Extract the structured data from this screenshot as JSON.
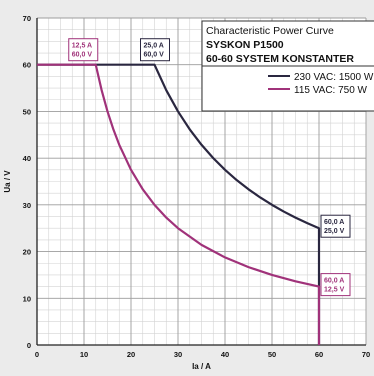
{
  "chart_data": {
    "type": "line",
    "title": "Characteristic Power Curve",
    "subtitle_lines": [
      "SYSKON P1500",
      "60-60 SYSTEM KONSTANTER"
    ],
    "xlabel": "Ia / A",
    "ylabel": "Ua / V",
    "xlim": [
      0,
      70
    ],
    "ylim": [
      0,
      70
    ],
    "x_ticks": [
      0,
      10,
      20,
      30,
      40,
      50,
      60,
      70
    ],
    "y_ticks": [
      0,
      10,
      20,
      30,
      40,
      50,
      60,
      70
    ],
    "grid": true,
    "legend_position": "top-right",
    "series": [
      {
        "name": "230 VAC: 1500 W",
        "color": "#2a2740",
        "x": [
          0,
          25,
          27.5,
          30,
          32.5,
          35,
          37.5,
          40,
          42.5,
          45,
          47.5,
          50,
          52.5,
          55,
          57.5,
          60,
          60
        ],
        "y": [
          60,
          60,
          54.55,
          50,
          46.15,
          42.86,
          40,
          37.5,
          35.29,
          33.33,
          31.58,
          30,
          28.57,
          27.27,
          26.09,
          25,
          0
        ]
      },
      {
        "name": "115 VAC:  750 W",
        "color": "#a0327a",
        "x": [
          0,
          12.5,
          13.75,
          15,
          16.25,
          17.5,
          20,
          22.5,
          25,
          27.5,
          30,
          35,
          40,
          45,
          50,
          55,
          60,
          60
        ],
        "y": [
          60,
          60,
          54.55,
          50,
          46.15,
          42.86,
          37.5,
          33.33,
          30,
          27.27,
          25,
          21.43,
          18.75,
          16.67,
          15,
          13.64,
          12.5,
          0
        ]
      }
    ],
    "annotations": [
      {
        "lines": [
          "12,5 A",
          "60,0 V"
        ],
        "color": "#a0327a"
      },
      {
        "lines": [
          "25,0 A",
          "60,0 V"
        ],
        "color": "#2a2740"
      },
      {
        "lines": [
          "60,0 A",
          "25,0 V"
        ],
        "color": "#2a2740"
      },
      {
        "lines": [
          "60,0 A",
          "12,5 V"
        ],
        "color": "#a0327a"
      }
    ]
  }
}
